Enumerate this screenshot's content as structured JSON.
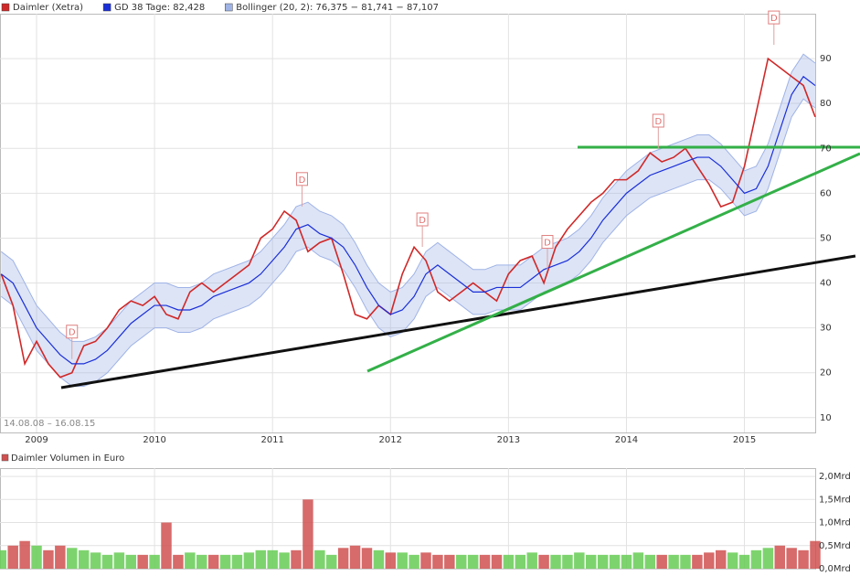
{
  "chart_data": [
    {
      "type": "line",
      "x": [
        2008.7,
        2008.8,
        2008.9,
        2009.0,
        2009.1,
        2009.2,
        2009.3,
        2009.4,
        2009.5,
        2009.6,
        2009.7,
        2009.8,
        2009.9,
        2010.0,
        2010.1,
        2010.2,
        2010.3,
        2010.4,
        2010.5,
        2010.6,
        2010.7,
        2010.8,
        2010.9,
        2011.0,
        2011.1,
        2011.2,
        2011.3,
        2011.4,
        2011.5,
        2011.6,
        2011.7,
        2011.8,
        2011.9,
        2012.0,
        2012.1,
        2012.2,
        2012.3,
        2012.4,
        2012.5,
        2012.6,
        2012.7,
        2012.8,
        2012.9,
        2013.0,
        2013.1,
        2013.2,
        2013.3,
        2013.4,
        2013.5,
        2013.6,
        2013.7,
        2013.8,
        2013.9,
        2014.0,
        2014.1,
        2014.2,
        2014.3,
        2014.4,
        2014.5,
        2014.6,
        2014.7,
        2014.8,
        2014.9,
        2015.0,
        2015.1,
        2015.2,
        2015.3,
        2015.4,
        2015.5,
        2015.6
      ],
      "series": [
        {
          "name": "Daimler (Xetra)",
          "color": "#d02828",
          "values": [
            42,
            35,
            22,
            27,
            22,
            19,
            20,
            26,
            27,
            30,
            34,
            36,
            35,
            37,
            33,
            32,
            38,
            40,
            38,
            40,
            42,
            44,
            50,
            52,
            56,
            54,
            47,
            49,
            50,
            42,
            33,
            32,
            35,
            33,
            42,
            48,
            45,
            38,
            36,
            38,
            40,
            38,
            36,
            42,
            45,
            46,
            40,
            48,
            52,
            55,
            58,
            60,
            63,
            63,
            65,
            69,
            67,
            68,
            70,
            66,
            62,
            57,
            58,
            66,
            78,
            90,
            88,
            86,
            84,
            77
          ]
        },
        {
          "name": "GD 38 Tage: 82,428",
          "color": "#1a2fd8",
          "values": [
            42,
            40,
            35,
            30,
            27,
            24,
            22,
            22,
            23,
            25,
            28,
            31,
            33,
            35,
            35,
            34,
            34,
            35,
            37,
            38,
            39,
            40,
            42,
            45,
            48,
            52,
            53,
            51,
            50,
            48,
            44,
            39,
            35,
            33,
            34,
            37,
            42,
            44,
            42,
            40,
            38,
            38,
            39,
            39,
            39,
            41,
            43,
            44,
            45,
            47,
            50,
            54,
            57,
            60,
            62,
            64,
            65,
            66,
            67,
            68,
            68,
            66,
            63,
            60,
            61,
            66,
            74,
            82,
            86,
            84
          ]
        },
        {
          "name": "Bollinger (20, 2): 76,375 − 81,741 − 87,107",
          "color": "#9fb3e6",
          "upper": [
            47,
            45,
            40,
            35,
            32,
            29,
            27,
            27,
            28,
            30,
            33,
            36,
            38,
            40,
            40,
            39,
            39,
            40,
            42,
            43,
            44,
            45,
            47,
            50,
            53,
            57,
            58,
            56,
            55,
            53,
            49,
            44,
            40,
            38,
            39,
            42,
            47,
            49,
            47,
            45,
            43,
            43,
            44,
            44,
            44,
            46,
            48,
            49,
            50,
            52,
            55,
            59,
            62,
            65,
            67,
            69,
            70,
            71,
            72,
            73,
            73,
            71,
            68,
            65,
            66,
            71,
            79,
            87,
            91,
            89
          ],
          "lower": [
            37,
            35,
            30,
            25,
            22,
            19,
            17,
            17,
            18,
            20,
            23,
            26,
            28,
            30,
            30,
            29,
            29,
            30,
            32,
            33,
            34,
            35,
            37,
            40,
            43,
            47,
            48,
            46,
            45,
            43,
            39,
            34,
            30,
            28,
            29,
            32,
            37,
            39,
            37,
            35,
            33,
            33,
            34,
            34,
            34,
            36,
            38,
            39,
            40,
            42,
            45,
            49,
            52,
            55,
            57,
            59,
            60,
            61,
            62,
            63,
            63,
            61,
            58,
            55,
            56,
            61,
            69,
            77,
            81,
            79
          ]
        }
      ],
      "dividends": {
        "x": [
          2009.3,
          2011.25,
          2012.27,
          2013.33,
          2014.27,
          2015.25
        ],
        "labels": [
          "D",
          "D",
          "D",
          "D",
          "D",
          "D"
        ]
      },
      "date_range": "14.08.08 – 16.08.15",
      "xlim": [
        2008.69,
        2015.6
      ],
      "xticks": [
        2009,
        2010,
        2011,
        2012,
        2013,
        2014,
        2015
      ],
      "ylim": [
        6.7,
        100
      ],
      "yticks": [
        10,
        20,
        30,
        40,
        50,
        60,
        70,
        80,
        90
      ],
      "grid": true
    },
    {
      "type": "bar",
      "title": "Daimler Volumen in Euro",
      "color": "#d05050",
      "up_color": "#66cc55",
      "down_color": "#d05050",
      "values": [
        0.4,
        0.5,
        0.6,
        0.5,
        0.4,
        0.5,
        0.45,
        0.4,
        0.35,
        0.3,
        0.35,
        0.3,
        0.3,
        0.3,
        1.0,
        0.3,
        0.35,
        0.3,
        0.3,
        0.3,
        0.3,
        0.35,
        0.4,
        0.4,
        0.35,
        0.4,
        1.5,
        0.4,
        0.3,
        0.45,
        0.5,
        0.45,
        0.4,
        0.35,
        0.35,
        0.3,
        0.35,
        0.3,
        0.3,
        0.3,
        0.3,
        0.3,
        0.3,
        0.3,
        0.3,
        0.35,
        0.3,
        0.3,
        0.3,
        0.35,
        0.3,
        0.3,
        0.3,
        0.3,
        0.35,
        0.3,
        0.3,
        0.3,
        0.3,
        0.3,
        0.35,
        0.4,
        0.35,
        0.3,
        0.4,
        0.45,
        0.5,
        0.45,
        0.4,
        0.6
      ],
      "ylim": [
        0,
        2.18
      ],
      "yticks": [
        {
          "value": 0,
          "label": "0,0Mrd"
        },
        {
          "value": 0.5,
          "label": "0,5Mrd"
        },
        {
          "value": 1.0,
          "label": "1,0Mrd"
        },
        {
          "value": 1.5,
          "label": "1,5Mrd"
        },
        {
          "value": 2.0,
          "label": "2,0Mrd"
        }
      ],
      "grid": true
    }
  ]
}
